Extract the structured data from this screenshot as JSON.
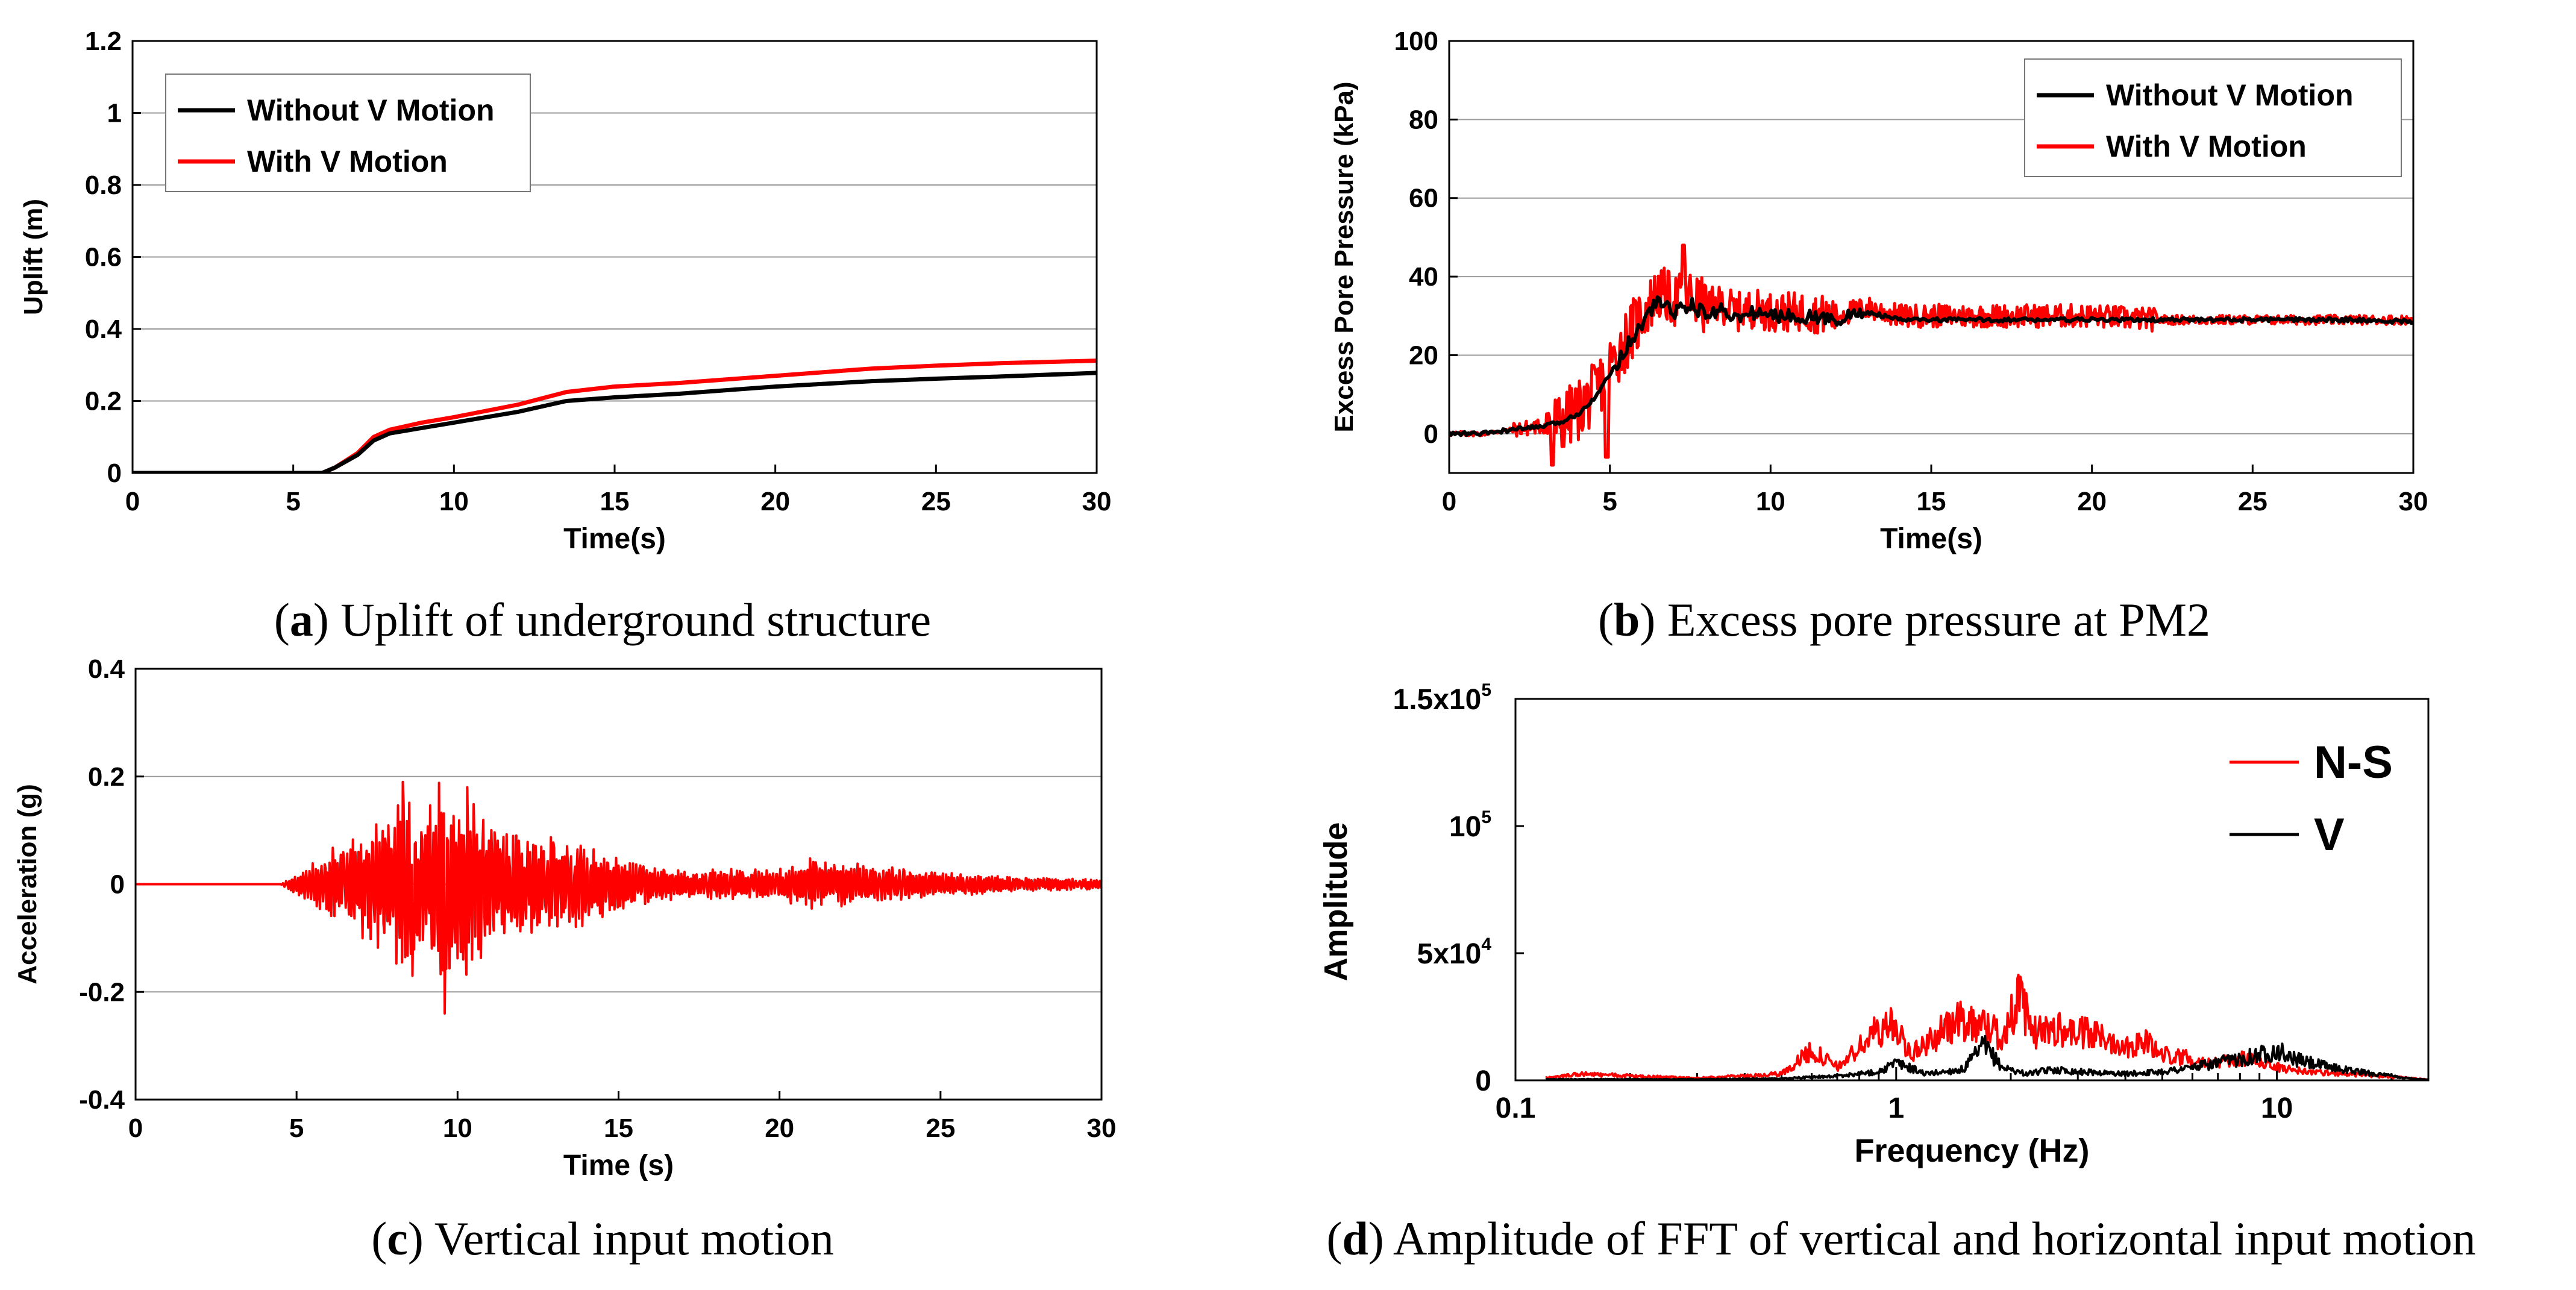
{
  "chart_data": [
    {
      "id": "a",
      "type": "line",
      "caption_letter": "a",
      "caption_text": " Uplift of underground structure",
      "xlabel": "Time(s)",
      "ylabel": "Uplift (m)",
      "xlim": [
        0,
        30
      ],
      "ylim": [
        0,
        1.2
      ],
      "xticks": [
        0,
        5,
        10,
        15,
        20,
        25,
        30
      ],
      "yticks": [
        0,
        0.2,
        0.4,
        0.6,
        0.8,
        1,
        1.2
      ],
      "ytick_labels": [
        "0",
        "0.2",
        "0.4",
        "0.6",
        "0.8",
        "1",
        "1.2"
      ],
      "grid": "horizontal",
      "legend_position": "top-left",
      "series": [
        {
          "name": "Without V Motion",
          "color": "#000000",
          "x": [
            0,
            5.9,
            6.3,
            7,
            7.5,
            8,
            9,
            10,
            12,
            13.5,
            15,
            17,
            20,
            23,
            25,
            27,
            30
          ],
          "y": [
            0,
            0,
            0.015,
            0.05,
            0.09,
            0.11,
            0.125,
            0.14,
            0.17,
            0.2,
            0.21,
            0.22,
            0.24,
            0.255,
            0.262,
            0.268,
            0.278
          ]
        },
        {
          "name": "With V Motion",
          "color": "#ff0000",
          "x": [
            0,
            5.9,
            6.3,
            7,
            7.5,
            8,
            9,
            10,
            12,
            13.5,
            15,
            17,
            20,
            23,
            25,
            27,
            30
          ],
          "y": [
            0,
            0,
            0.015,
            0.055,
            0.1,
            0.12,
            0.14,
            0.155,
            0.19,
            0.225,
            0.24,
            0.25,
            0.27,
            0.29,
            0.298,
            0.305,
            0.312
          ]
        }
      ]
    },
    {
      "id": "b",
      "type": "line",
      "caption_letter": "b",
      "caption_text": " Excess pore pressure at PM2",
      "xlabel": "Time(s)",
      "ylabel": "Excess Pore Pressure (kPa)",
      "xlim": [
        0,
        30
      ],
      "ylim": [
        -10,
        100
      ],
      "xticks": [
        0,
        5,
        10,
        15,
        20,
        25,
        30
      ],
      "yticks": [
        0,
        20,
        40,
        60,
        80,
        100
      ],
      "ytick_labels": [
        "0",
        "20",
        "40",
        "60",
        "80",
        "100"
      ],
      "grid": "horizontal",
      "legend_position": "top-right",
      "series": [
        {
          "name": "Without V Motion",
          "color": "#000000",
          "x": [
            0,
            1,
            2,
            3,
            3.5,
            4,
            4.5,
            5,
            5.5,
            6,
            6.5,
            7,
            7.5,
            8,
            8.5,
            9,
            9.5,
            10,
            11,
            12,
            13,
            14,
            16,
            18,
            20,
            22,
            25,
            28,
            30
          ],
          "y": [
            0,
            0,
            1,
            2,
            3,
            5,
            9,
            15,
            22,
            28,
            34,
            31,
            33,
            30,
            32,
            29,
            31,
            30,
            30,
            29,
            31,
            29,
            29,
            29,
            29,
            29,
            29,
            29,
            28.5
          ]
        },
        {
          "name": "With V Motion",
          "color": "#ff0000",
          "x": [
            0,
            1,
            2,
            3,
            3.5,
            4,
            4.5,
            5,
            5.5,
            6,
            6.5,
            7,
            7.5,
            8,
            8.5,
            9,
            9.5,
            10,
            11,
            12,
            13,
            14,
            16,
            18,
            20,
            22,
            25,
            28,
            30
          ],
          "y": [
            0,
            0,
            1,
            2,
            3,
            6,
            10,
            17,
            24,
            30,
            36,
            34,
            35,
            32,
            33,
            31,
            32,
            31,
            31,
            30,
            32,
            30,
            30,
            30,
            30,
            29,
            29,
            29,
            29
          ],
          "noise": "high-frequency oscillation, peak ~48 kPa near t=7.3 s, minimum ~-8 kPa near t=3.2 s"
        }
      ]
    },
    {
      "id": "c",
      "type": "line",
      "caption_letter": "c",
      "caption_text": " Vertical input motion",
      "xlabel": "Time (s)",
      "ylabel": "Acceleration (g)",
      "xlim": [
        0,
        30
      ],
      "ylim": [
        -0.4,
        0.4
      ],
      "xticks": [
        0,
        5,
        10,
        15,
        20,
        25,
        30
      ],
      "yticks": [
        -0.4,
        -0.2,
        0,
        0.2,
        0.4
      ],
      "ytick_labels": [
        "-0.4",
        "-0.2",
        "0",
        "0.2",
        "0.4"
      ],
      "grid": "horizontal",
      "series": [
        {
          "name": "",
          "color": "#ff0000",
          "envelope_t": [
            0,
            4.5,
            5,
            6,
            7,
            8,
            8.3,
            9,
            9.6,
            10,
            10.3,
            11,
            12,
            13,
            14,
            15,
            17,
            20,
            21,
            23,
            25,
            27,
            30
          ],
          "envelope_a": [
            0,
            0,
            0.02,
            0.07,
            0.1,
            0.14,
            0.19,
            0.14,
            0.23,
            0.14,
            0.18,
            0.12,
            0.1,
            0.09,
            0.08,
            0.05,
            0.03,
            0.03,
            0.05,
            0.035,
            0.025,
            0.015,
            0.01
          ],
          "note": "earthquake acceleration record, peak +0.19 g near 8.3 s, min -0.24 g near 9.6 s"
        }
      ]
    },
    {
      "id": "d",
      "type": "line",
      "caption_letter": "d",
      "caption_text": " Amplitude of FFT of vertical and horizontal input motion",
      "xlabel": "Frequency (Hz)",
      "ylabel": "Amplitude",
      "xscale": "log",
      "xlim": [
        0.1,
        25
      ],
      "ylim": [
        0,
        150000
      ],
      "xticks": [
        0.1,
        1,
        10
      ],
      "xtick_labels": [
        "0.1",
        "1",
        "10"
      ],
      "yticks": [
        0,
        50000,
        100000,
        150000
      ],
      "ytick_labels": [
        {
          "base": "0",
          "exp": ""
        },
        {
          "base": "5x10",
          "exp": "4"
        },
        {
          "base": "10",
          "exp": "5"
        },
        {
          "base": "1.5x10",
          "exp": "5"
        }
      ],
      "grid": "none",
      "legend_position": "top-right",
      "series": [
        {
          "name": "N-S",
          "color": "#ff0000",
          "x": [
            0.12,
            0.15,
            0.2,
            0.3,
            0.4,
            0.5,
            0.6,
            0.7,
            0.8,
            0.9,
            1.0,
            1.1,
            1.3,
            1.5,
            1.7,
            1.9,
            2.1,
            2.3,
            2.6,
            3.0,
            3.5,
            4.0,
            4.5,
            5,
            6,
            7,
            8,
            9,
            10,
            12,
            15,
            20,
            25
          ],
          "y": [
            1000,
            3000,
            2000,
            1000,
            2000,
            3000,
            14000,
            6000,
            15000,
            24000,
            25000,
            12000,
            22000,
            28000,
            26000,
            20000,
            38000,
            22000,
            24000,
            22000,
            20000,
            16000,
            18000,
            12000,
            10000,
            8000,
            10000,
            9000,
            6000,
            4000,
            3000,
            1500,
            500
          ]
        },
        {
          "name": "V",
          "color": "#000000",
          "x": [
            0.12,
            0.2,
            0.3,
            0.5,
            0.7,
            0.9,
            1.0,
            1.2,
            1.5,
            1.7,
            1.9,
            2.2,
            2.6,
            3,
            4,
            5,
            6,
            7,
            8,
            9,
            10,
            11,
            13,
            15,
            18,
            22,
            25
          ],
          "y": [
            500,
            500,
            500,
            800,
            2000,
            4000,
            8000,
            3000,
            5000,
            16000,
            6000,
            3000,
            5000,
            4000,
            3000,
            4000,
            6000,
            8000,
            10000,
            12000,
            14000,
            10000,
            7000,
            5000,
            3000,
            1000,
            300
          ]
        }
      ]
    }
  ]
}
